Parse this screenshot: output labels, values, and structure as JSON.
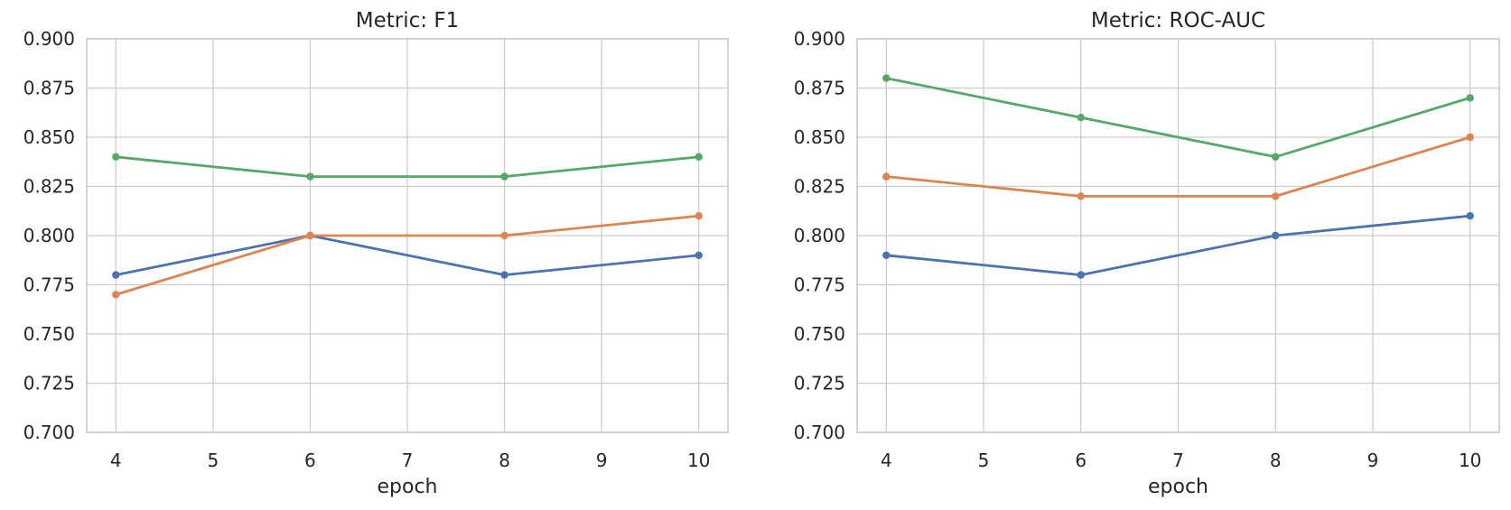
{
  "figure": {
    "background": "#ffffff",
    "grid_color": "#cccccc",
    "spine_color": "#cccccc",
    "text_color": "#262626"
  },
  "chart_data": [
    {
      "type": "line",
      "title": "Metric: F1",
      "xlabel": "epoch",
      "ylabel": "",
      "x": [
        4,
        6,
        8,
        10
      ],
      "xlim": [
        3.7,
        10.3
      ],
      "ylim": [
        0.7,
        0.9
      ],
      "xticks": [
        4,
        5,
        6,
        7,
        8,
        9,
        10
      ],
      "xtick_labels": [
        "4",
        "5",
        "6",
        "7",
        "8",
        "9",
        "10"
      ],
      "yticks": [
        0.7,
        0.725,
        0.75,
        0.775,
        0.8,
        0.825,
        0.85,
        0.875,
        0.9
      ],
      "ytick_labels": [
        "0.700",
        "0.725",
        "0.750",
        "0.775",
        "0.800",
        "0.825",
        "0.850",
        "0.875",
        "0.900"
      ],
      "grid": true,
      "legend": "none",
      "series": [
        {
          "name": "series-blue",
          "color": "#4C72B0",
          "values": [
            0.78,
            0.8,
            0.78,
            0.79
          ]
        },
        {
          "name": "series-orange",
          "color": "#DD8452",
          "values": [
            0.77,
            0.8,
            0.8,
            0.81
          ]
        },
        {
          "name": "series-green",
          "color": "#55A868",
          "values": [
            0.84,
            0.83,
            0.83,
            0.84
          ]
        }
      ]
    },
    {
      "type": "line",
      "title": "Metric: ROC-AUC",
      "xlabel": "epoch",
      "ylabel": "",
      "x": [
        4,
        6,
        8,
        10
      ],
      "xlim": [
        3.7,
        10.3
      ],
      "ylim": [
        0.7,
        0.9
      ],
      "xticks": [
        4,
        5,
        6,
        7,
        8,
        9,
        10
      ],
      "xtick_labels": [
        "4",
        "5",
        "6",
        "7",
        "8",
        "9",
        "10"
      ],
      "yticks": [
        0.7,
        0.725,
        0.75,
        0.775,
        0.8,
        0.825,
        0.85,
        0.875,
        0.9
      ],
      "ytick_labels": [
        "0.700",
        "0.725",
        "0.750",
        "0.775",
        "0.800",
        "0.825",
        "0.850",
        "0.875",
        "0.900"
      ],
      "grid": true,
      "legend": "none",
      "series": [
        {
          "name": "series-blue",
          "color": "#4C72B0",
          "values": [
            0.79,
            0.78,
            0.8,
            0.81
          ]
        },
        {
          "name": "series-orange",
          "color": "#DD8452",
          "values": [
            0.83,
            0.82,
            0.82,
            0.85
          ]
        },
        {
          "name": "series-green",
          "color": "#55A868",
          "values": [
            0.88,
            0.86,
            0.84,
            0.87
          ]
        }
      ]
    }
  ]
}
